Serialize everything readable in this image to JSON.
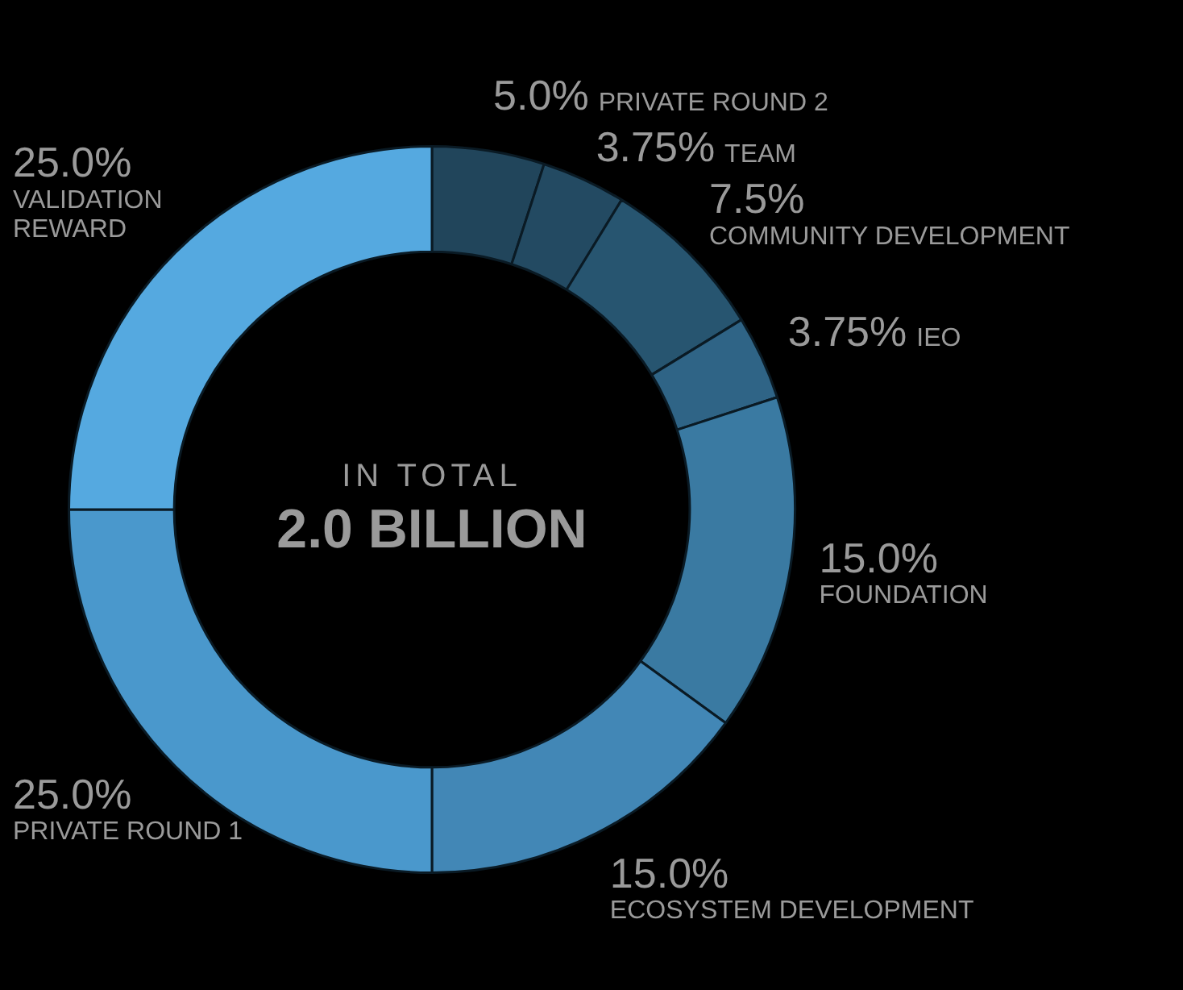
{
  "chart_data": {
    "type": "donut",
    "categories": [
      "PRIVATE ROUND 2",
      "TEAM",
      "COMMUNITY DEVELOPMENT",
      "IEO",
      "FOUNDATION",
      "ECOSYSTEM DEVELOPMENT",
      "PRIVATE ROUND 1",
      "VALIDATION REWARD"
    ],
    "values": [
      5.0,
      3.75,
      7.5,
      3.75,
      15.0,
      15.0,
      25.0,
      25.0
    ],
    "value_labels": [
      "5.0%",
      "3.75%",
      "7.5%",
      "3.75%",
      "15.0%",
      "15.0%",
      "25.0%",
      "25.0%"
    ],
    "colors": [
      "#21455b",
      "#234a62",
      "#275570",
      "#2f6486",
      "#3a7aa2",
      "#4287b6",
      "#4a98cc",
      "#55a9e0"
    ],
    "annotations": [
      "IN TOTAL",
      "2.0 BILLION"
    ],
    "legend": false
  }
}
